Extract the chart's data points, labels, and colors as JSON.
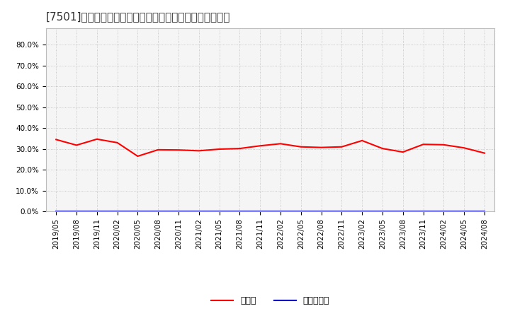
{
  "title": "[7501]　現顔金、有利子負債の総資産に対する比率の推移",
  "dates": [
    "2019/05",
    "2019/08",
    "2019/11",
    "2020/02",
    "2020/05",
    "2020/08",
    "2020/11",
    "2021/02",
    "2021/05",
    "2021/08",
    "2021/11",
    "2022/02",
    "2022/05",
    "2022/08",
    "2022/11",
    "2023/02",
    "2023/05",
    "2023/08",
    "2023/11",
    "2024/02",
    "2024/05",
    "2024/08"
  ],
  "cash_ratio": [
    0.345,
    0.318,
    0.347,
    0.33,
    0.265,
    0.296,
    0.295,
    0.291,
    0.299,
    0.302,
    0.315,
    0.325,
    0.31,
    0.307,
    0.31,
    0.34,
    0.302,
    0.285,
    0.322,
    0.32,
    0.305,
    0.28
  ],
  "debt_ratio": [
    0.001,
    0.001,
    0.001,
    0.001,
    0.001,
    0.001,
    0.001,
    0.001,
    0.001,
    0.001,
    0.001,
    0.001,
    0.001,
    0.001,
    0.001,
    0.001,
    0.001,
    0.001,
    0.001,
    0.001,
    0.001,
    0.001
  ],
  "cash_color": "#ff0000",
  "debt_color": "#0000cc",
  "cash_label": "現顔金",
  "debt_label": "有利子負債",
  "ylim": [
    0.0,
    0.88
  ],
  "yticks": [
    0.0,
    0.1,
    0.2,
    0.3,
    0.4,
    0.5,
    0.6,
    0.7,
    0.8
  ],
  "background_color": "#ffffff",
  "plot_bg_color": "#f5f5f5",
  "grid_color": "#bbbbbb",
  "title_fontsize": 11,
  "tick_fontsize": 7.5,
  "legend_fontsize": 9
}
